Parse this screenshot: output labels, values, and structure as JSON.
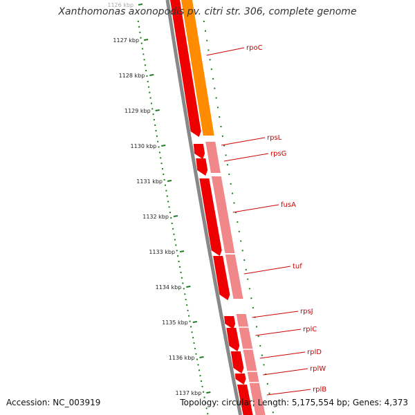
{
  "title": "Xanthomonas axonopodis pv. citri str. 306, complete genome",
  "footer": {
    "accession": "Accession: NC_003919",
    "summary": "Topology: circular; Length: 5,175,554 bp; Genes: 4,373"
  },
  "colors": {
    "backbone": "#888888",
    "ticks": "#1f7a1f",
    "gene_strong": "#ee0000",
    "gene_light": "#f0888a",
    "gene_orange": "#ff8c00",
    "label": "#cc0000"
  },
  "ruler": {
    "unit": "kbp",
    "ticks": [
      {
        "label": "1126 kbp",
        "faded": true
      },
      {
        "label": "1127 kbp"
      },
      {
        "label": "1128 kbp"
      },
      {
        "label": "1129 kbp"
      },
      {
        "label": "1130 kbp"
      },
      {
        "label": "1131 kbp"
      },
      {
        "label": "1132 kbp"
      },
      {
        "label": "1133 kbp"
      },
      {
        "label": "1134 kbp"
      },
      {
        "label": "1135 kbp"
      },
      {
        "label": "1136 kbp"
      },
      {
        "label": "1137 kbp"
      }
    ]
  },
  "genes": [
    "rpoC",
    "rpsL",
    "rpsG",
    "fusA",
    "tuf",
    "rpsJ",
    "rplC",
    "rplD",
    "rplW",
    "rplB"
  ]
}
